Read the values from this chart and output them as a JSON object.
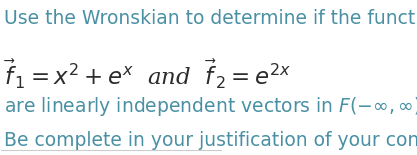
{
  "background_color": "#ffffff",
  "text_color": "#4a90a4",
  "math_color": "#2c2c2c",
  "line1": "Use the Wronskian to determine if the function vectors",
  "line4": "Be complete in your justification of your conclusion",
  "font_size_text": 13.5,
  "font_size_math": 16.5,
  "fig_width": 4.17,
  "fig_height": 1.55,
  "dpi": 100
}
